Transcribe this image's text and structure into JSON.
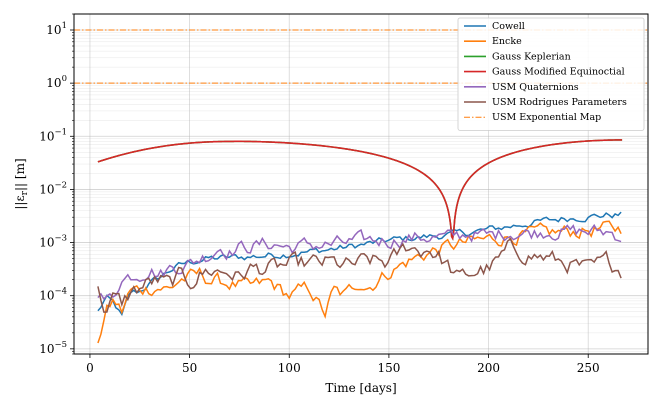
{
  "chart_data": {
    "type": "line",
    "xlabel": "Time [days]",
    "ylabel": "||ε",
    "ylabel_sub": "r",
    "ylabel_tail": "|| [m]",
    "yscale": "log",
    "xlim": [
      -8,
      280
    ],
    "ylim": [
      8e-06,
      20
    ],
    "xticks": [
      0,
      50,
      100,
      150,
      200,
      250
    ],
    "yticks": [
      {
        "v": 1e-05,
        "base": "10",
        "exp": "−5"
      },
      {
        "v": 0.0001,
        "base": "10",
        "exp": "−4"
      },
      {
        "v": 0.001,
        "base": "10",
        "exp": "−3"
      },
      {
        "v": 0.01,
        "base": "10",
        "exp": "−2"
      },
      {
        "v": 0.1,
        "base": "10",
        "exp": "−1"
      },
      {
        "v": 1,
        "base": "10",
        "exp": "0"
      },
      {
        "v": 10,
        "base": "10",
        "exp": "1"
      }
    ],
    "grid": true,
    "legend_position": "top-right",
    "series": [
      {
        "name": "Cowell",
        "color": "#1f77b4",
        "kind": "noisy",
        "points": [
          [
            4,
            5e-05
          ],
          [
            8,
            9e-05
          ],
          [
            12,
            7e-05
          ],
          [
            16,
            4e-05
          ],
          [
            20,
            0.00011
          ],
          [
            25,
            0.00012
          ],
          [
            30,
            0.00017
          ],
          [
            35,
            0.00022
          ],
          [
            40,
            0.0003
          ],
          [
            45,
            0.00037
          ],
          [
            50,
            0.00043
          ],
          [
            55,
            0.00047
          ],
          [
            60,
            0.0005
          ],
          [
            70,
            0.00052
          ],
          [
            80,
            0.00054
          ],
          [
            90,
            0.00058
          ],
          [
            100,
            0.00062
          ],
          [
            110,
            0.00067
          ],
          [
            120,
            0.00074
          ],
          [
            130,
            0.00083
          ],
          [
            140,
            0.00095
          ],
          [
            150,
            0.0011
          ],
          [
            160,
            0.0012
          ],
          [
            170,
            0.0013
          ],
          [
            180,
            0.0014
          ],
          [
            190,
            0.00155
          ],
          [
            200,
            0.00175
          ],
          [
            210,
            0.002
          ],
          [
            220,
            0.0023
          ],
          [
            230,
            0.0026
          ],
          [
            240,
            0.0029
          ],
          [
            250,
            0.0031
          ],
          [
            260,
            0.0033
          ],
          [
            267,
            0.0033
          ]
        ],
        "jitter": 0.06
      },
      {
        "name": "Encke",
        "color": "#ff7f0e",
        "kind": "noisy",
        "points": [
          [
            4,
            1.5e-05
          ],
          [
            8,
            5e-05
          ],
          [
            12,
            8e-05
          ],
          [
            16,
            5e-05
          ],
          [
            20,
            0.00012
          ],
          [
            30,
            0.00014
          ],
          [
            35,
            0.00015
          ],
          [
            40,
            0.00013
          ],
          [
            45,
            0.0002
          ],
          [
            50,
            0.00022
          ],
          [
            55,
            0.00025
          ],
          [
            60,
            0.0002
          ],
          [
            70,
            0.00017
          ],
          [
            80,
            0.00014
          ],
          [
            90,
            0.00018
          ],
          [
            100,
            0.0001
          ],
          [
            110,
            0.00014
          ],
          [
            118,
            4.5e-05
          ],
          [
            122,
            0.00012
          ],
          [
            128,
            0.0001
          ],
          [
            135,
            0.00019
          ],
          [
            140,
            0.00015
          ],
          [
            150,
            0.00028
          ],
          [
            160,
            0.00045
          ],
          [
            170,
            0.00065
          ],
          [
            180,
            0.00085
          ],
          [
            190,
            0.001
          ],
          [
            200,
            0.00115
          ],
          [
            210,
            0.0013
          ],
          [
            220,
            0.0014
          ],
          [
            230,
            0.0015
          ],
          [
            240,
            0.0016
          ],
          [
            250,
            0.0017
          ],
          [
            260,
            0.0018
          ],
          [
            267,
            0.0018
          ]
        ],
        "jitter": 0.12
      },
      {
        "name": "Gauss Keplerian",
        "color": "#2ca02c",
        "kind": "smooth",
        "function": "gauss",
        "x_range": [
          4,
          267
        ],
        "peak": 0.08,
        "peak_x": 72,
        "start": 0.033,
        "min_x": 182,
        "min_val": 0.0012,
        "end": 0.085
      },
      {
        "name": "Gauss Modified Equinoctial",
        "color": "#d62728",
        "kind": "smooth",
        "function": "gauss",
        "x_range": [
          4,
          267
        ],
        "peak": 0.08,
        "peak_x": 72,
        "start": 0.033,
        "min_x": 182,
        "min_val": 0.0012,
        "end": 0.085
      },
      {
        "name": "USM Quaternions",
        "color": "#9467bd",
        "kind": "noisy",
        "points": [
          [
            4,
            0.00012
          ],
          [
            8,
            8e-05
          ],
          [
            12,
            0.0001
          ],
          [
            15,
            0.0002
          ],
          [
            20,
            0.00024
          ],
          [
            25,
            0.00027
          ],
          [
            30,
            0.00033
          ],
          [
            35,
            0.00025
          ],
          [
            40,
            0.00033
          ],
          [
            45,
            0.00037
          ],
          [
            50,
            0.0004
          ],
          [
            55,
            0.0005
          ],
          [
            60,
            0.0006
          ],
          [
            65,
            0.00085
          ],
          [
            70,
            0.0007
          ],
          [
            75,
            0.0008
          ],
          [
            80,
            0.00085
          ],
          [
            85,
            0.0009
          ],
          [
            90,
            0.00095
          ],
          [
            95,
            0.0009
          ],
          [
            100,
            0.0008
          ],
          [
            110,
            0.0009
          ],
          [
            120,
            0.0009
          ],
          [
            130,
            0.001
          ],
          [
            140,
            0.0011
          ],
          [
            150,
            0.0011
          ],
          [
            160,
            0.0012
          ],
          [
            170,
            0.0013
          ],
          [
            180,
            0.0012
          ],
          [
            190,
            0.0015
          ],
          [
            200,
            0.0013
          ],
          [
            210,
            0.0016
          ],
          [
            220,
            0.0015
          ],
          [
            230,
            0.0017
          ],
          [
            240,
            0.0016
          ],
          [
            250,
            0.0016
          ],
          [
            260,
            0.0016
          ],
          [
            267,
            0.0013
          ]
        ],
        "jitter": 0.12
      },
      {
        "name": "USM Rodrigues Parameters",
        "color": "#8c564b",
        "kind": "noisy",
        "points": [
          [
            4,
            0.00012
          ],
          [
            8,
            5e-05
          ],
          [
            12,
            9e-05
          ],
          [
            16,
            7e-05
          ],
          [
            20,
            0.00011
          ],
          [
            25,
            0.00014
          ],
          [
            30,
            0.00018
          ],
          [
            35,
            0.00019
          ],
          [
            40,
            0.00016
          ],
          [
            45,
            0.00023
          ],
          [
            50,
            0.00018
          ],
          [
            55,
            0.00025
          ],
          [
            60,
            0.0003
          ],
          [
            70,
            0.00028
          ],
          [
            75,
            0.00022
          ],
          [
            80,
            0.00032
          ],
          [
            90,
            0.00032
          ],
          [
            100,
            0.00038
          ],
          [
            110,
            0.0004
          ],
          [
            120,
            0.00042
          ],
          [
            130,
            0.00036
          ],
          [
            140,
            0.00045
          ],
          [
            150,
            0.00042
          ],
          [
            155,
            0.0006
          ],
          [
            160,
            0.0009
          ],
          [
            165,
            0.0007
          ],
          [
            170,
            0.0008
          ],
          [
            175,
            0.00055
          ],
          [
            180,
            0.00035
          ],
          [
            185,
            0.0002
          ],
          [
            190,
            0.00025
          ],
          [
            195,
            0.0003
          ],
          [
            200,
            0.00032
          ],
          [
            205,
            0.00045
          ],
          [
            210,
            0.00075
          ],
          [
            220,
            0.0006
          ],
          [
            230,
            0.0005
          ],
          [
            240,
            0.0004
          ],
          [
            250,
            0.0003
          ],
          [
            260,
            0.00045
          ],
          [
            267,
            0.0003
          ]
        ],
        "jitter": 0.14
      },
      {
        "name": "USM Exponential Map",
        "color": "#ff7f0e",
        "kind": "hline",
        "dashed": true,
        "values": [
          10,
          1
        ]
      }
    ]
  }
}
